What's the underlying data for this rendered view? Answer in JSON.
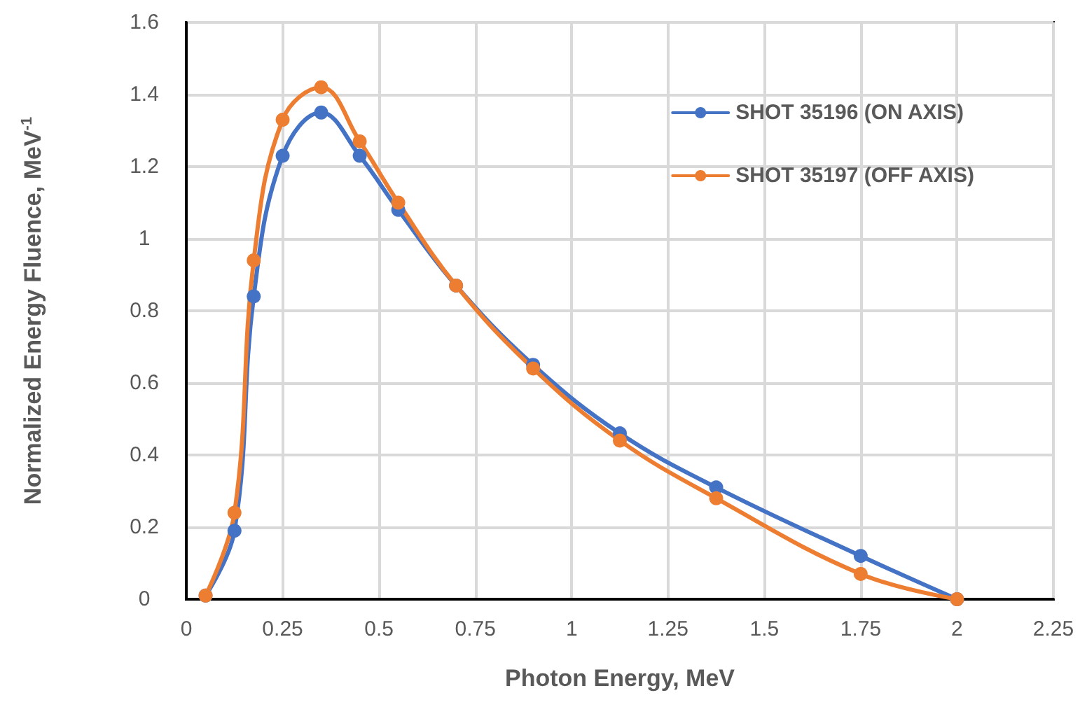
{
  "chart_data": {
    "type": "line",
    "xlabel": "Photon Energy, MeV",
    "ylabel": "Normalized Energy Fluence, MeV$^{-1}$",
    "x": [
      0.05,
      0.125,
      0.175,
      0.25,
      0.35,
      0.45,
      0.55,
      0.7,
      0.9,
      1.125,
      1.375,
      1.75,
      2.0
    ],
    "series": [
      {
        "name": "SHOT 35196 (ON AXIS)",
        "color": "#4472c4",
        "values": [
          0.01,
          0.19,
          0.84,
          1.23,
          1.35,
          1.23,
          1.08,
          0.87,
          0.65,
          0.46,
          0.31,
          0.12,
          0
        ]
      },
      {
        "name": "SHOT 35197 (OFF AXIS)",
        "color": "#ed7d31",
        "values": [
          0.01,
          0.24,
          0.94,
          1.33,
          1.42,
          1.27,
          1.1,
          0.87,
          0.64,
          0.44,
          0.28,
          0.07,
          0
        ]
      }
    ],
    "xlim": [
      0,
      2.25
    ],
    "xticks": [
      0,
      0.25,
      0.5,
      0.75,
      1,
      1.25,
      1.5,
      1.75,
      2,
      2.25
    ],
    "ylim": [
      0,
      1.6
    ],
    "yticks": [
      0,
      0.2,
      0.4,
      0.6,
      0.8,
      1,
      1.2,
      1.4,
      1.6
    ],
    "grid": true,
    "legend": "top right",
    "marker": "circle",
    "line_style": "solid"
  }
}
